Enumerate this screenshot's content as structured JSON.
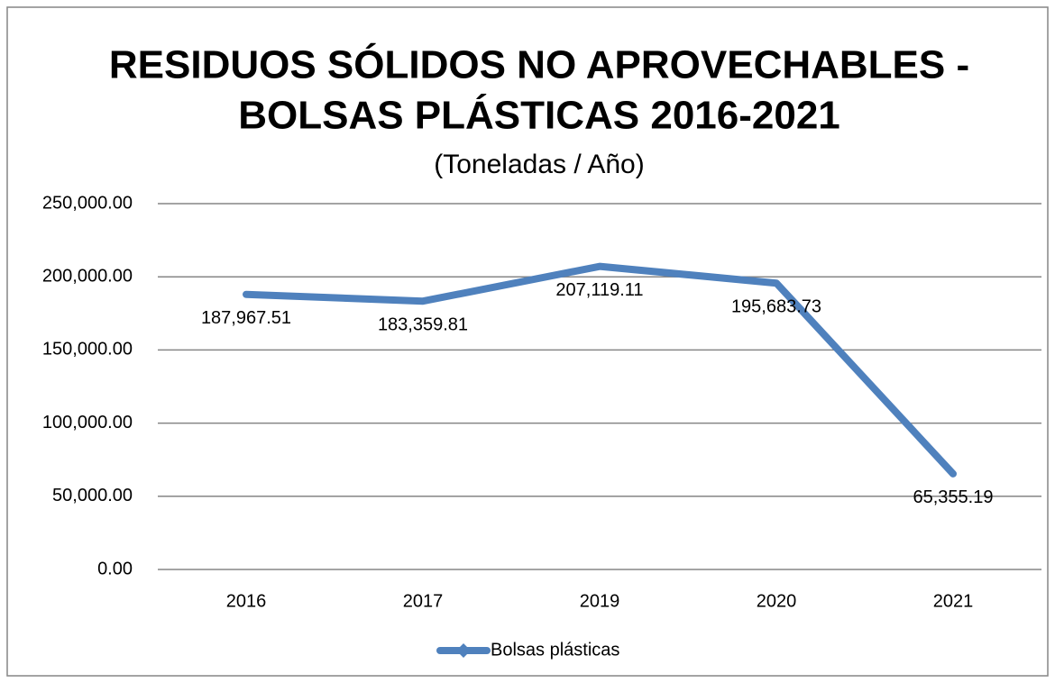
{
  "chart_data": {
    "type": "line",
    "title": [
      "RESIDUOS SÓLIDOS NO APROVECHABLES -",
      "BOLSAS PLÁSTICAS 2016-2021"
    ],
    "subtitle": "(Toneladas / Año)",
    "categories": [
      "2016",
      "2017",
      "2019",
      "2020",
      "2021"
    ],
    "series": [
      {
        "name": "Bolsas plásticas",
        "color": "#4f81bd",
        "values": [
          187967.51,
          183359.81,
          207119.11,
          195683.73,
          65355.19
        ],
        "value_labels": [
          "187,967.51",
          "183,359.81",
          "207,119.11",
          "195,683.73",
          "65,355.19"
        ]
      }
    ],
    "ylim": [
      0,
      250000
    ],
    "yticks": [
      {
        "value": 0,
        "label": "0.00"
      },
      {
        "value": 50000,
        "label": "50,000.00"
      },
      {
        "value": 100000,
        "label": "100,000.00"
      },
      {
        "value": 150000,
        "label": "150,000.00"
      },
      {
        "value": 200000,
        "label": "200,000.00"
      },
      {
        "value": 250000,
        "label": "250,000.00"
      }
    ],
    "grid": true,
    "legend": "bottom"
  }
}
